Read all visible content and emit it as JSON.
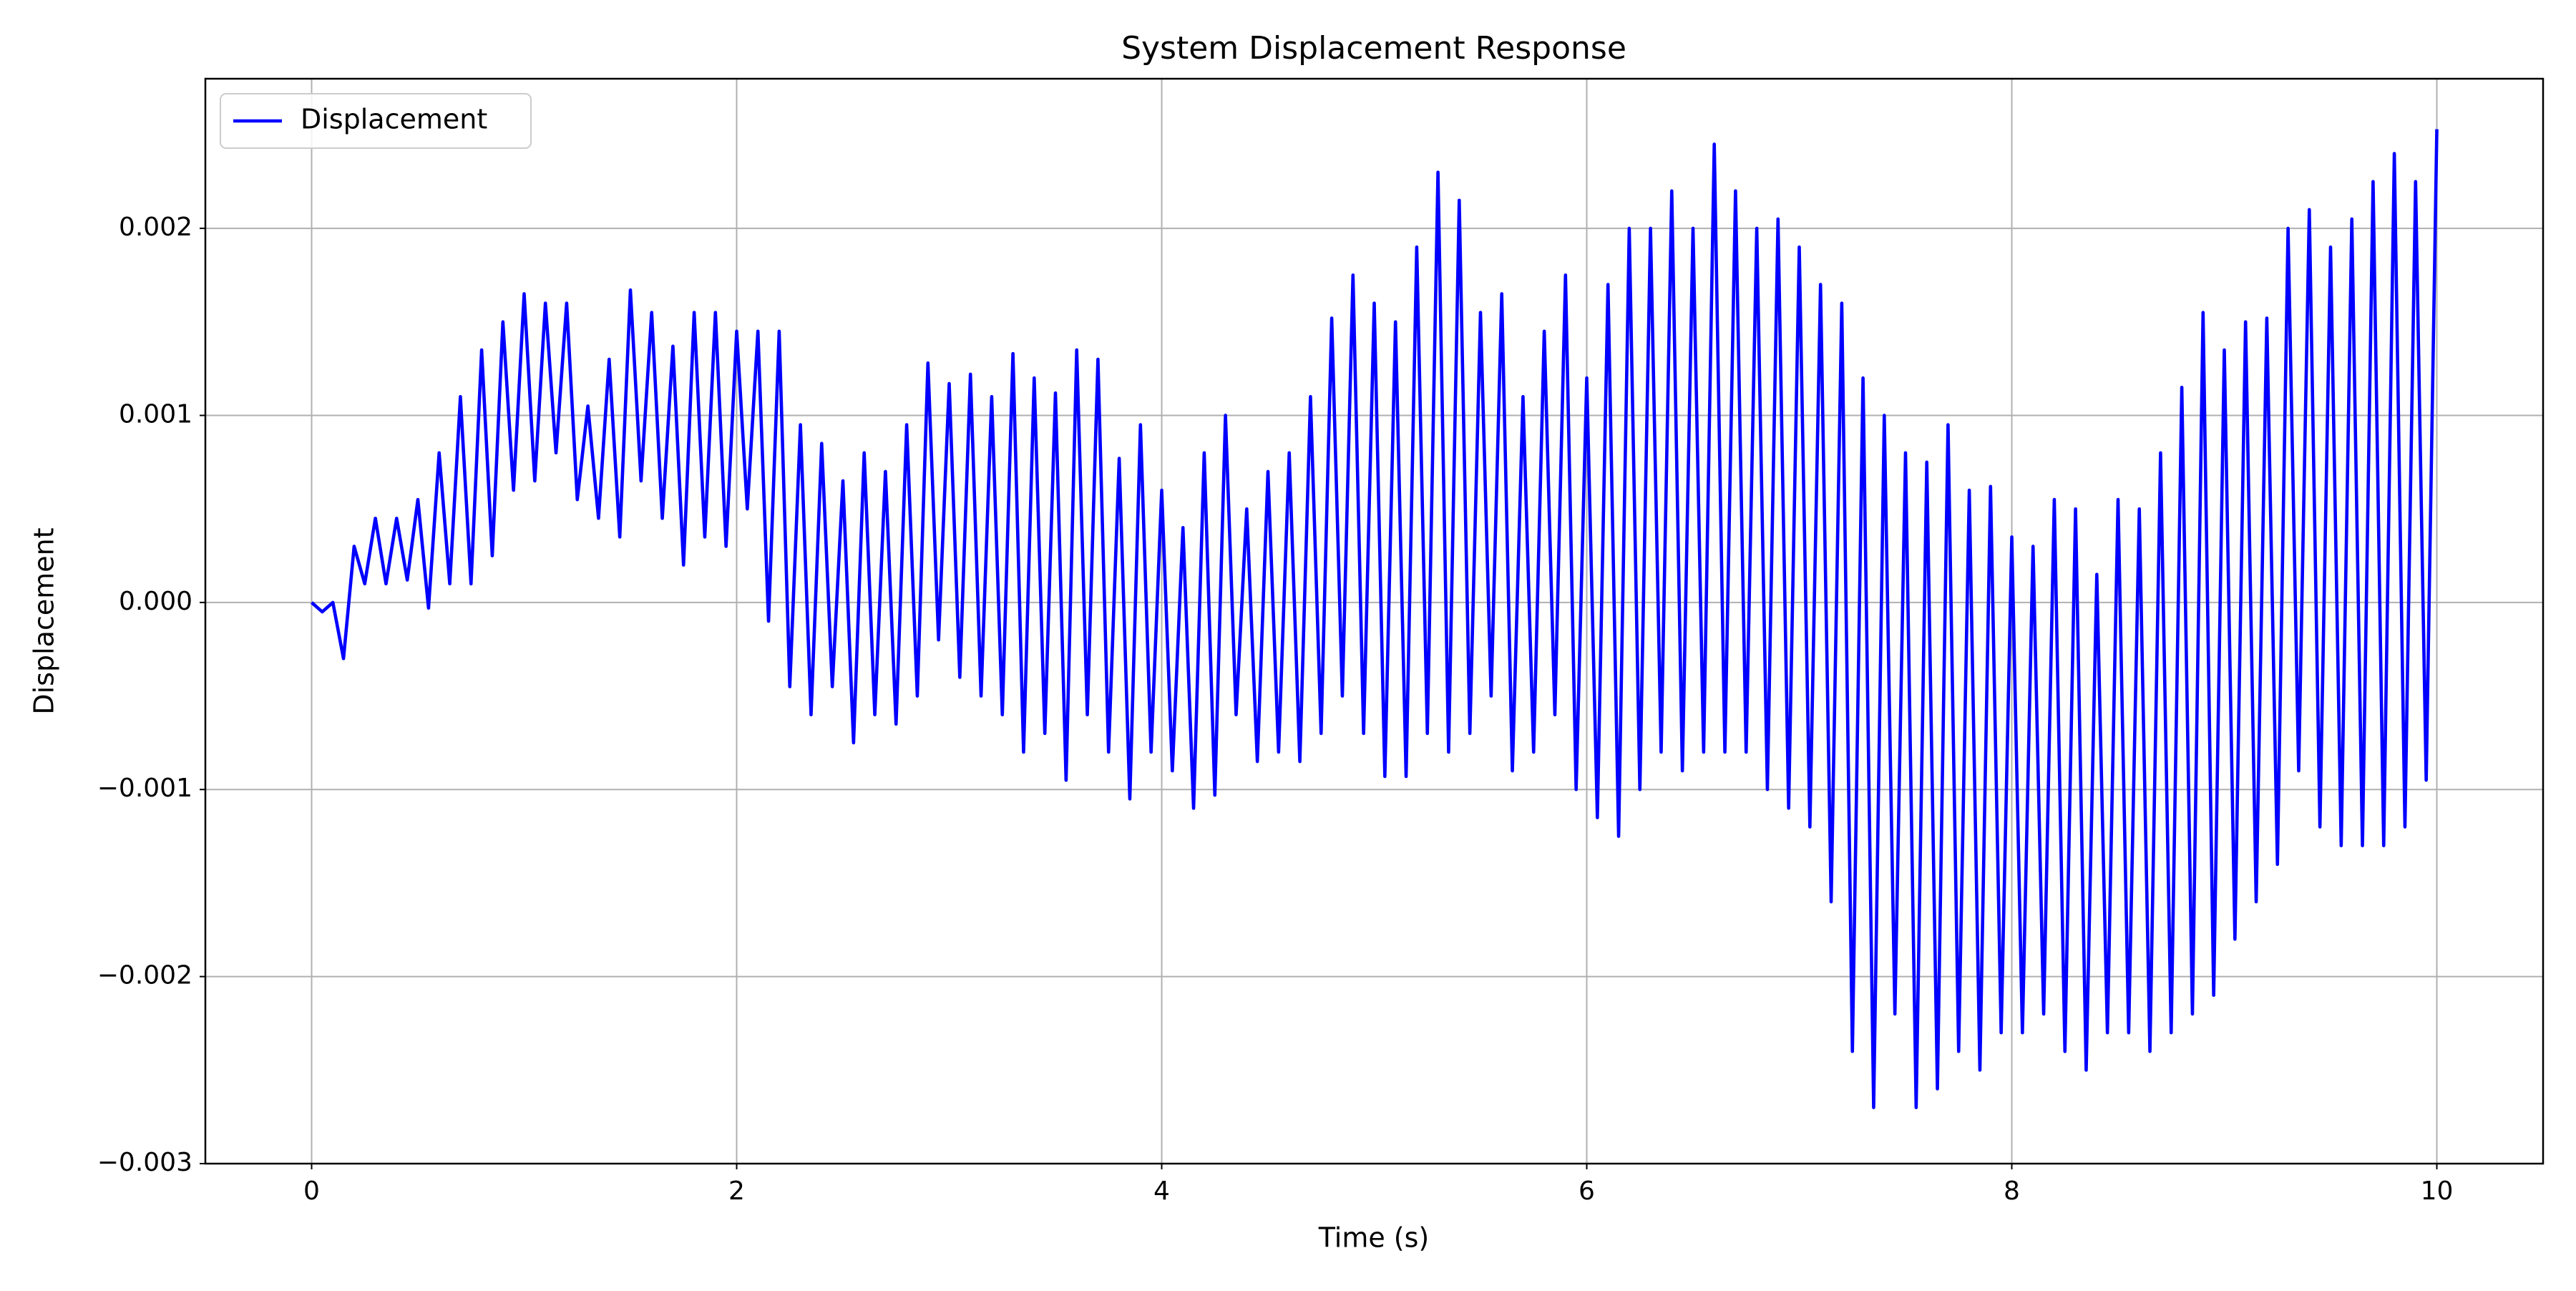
{
  "chart_data": {
    "type": "line",
    "title": "System Displacement Response",
    "x_label": "Time (s)",
    "y_label": "Displacement",
    "x": [
      0,
      0.05,
      0.1,
      0.15,
      0.2,
      0.25,
      0.3,
      0.35,
      0.4,
      0.45,
      0.5,
      0.55,
      0.6,
      0.65,
      0.7,
      0.75,
      0.8,
      0.85,
      0.9,
      0.95,
      1,
      1.05,
      1.1,
      1.15,
      1.2,
      1.25,
      1.3,
      1.35,
      1.4,
      1.45,
      1.5,
      1.55,
      1.6,
      1.65,
      1.7,
      1.75,
      1.8,
      1.85,
      1.9,
      1.95,
      2,
      2.05,
      2.1,
      2.15,
      2.2,
      2.25,
      2.3,
      2.35,
      2.4,
      2.45,
      2.5,
      2.55,
      2.6,
      2.65,
      2.7,
      2.75,
      2.8,
      2.85,
      2.9,
      2.95,
      3,
      3.05,
      3.1,
      3.15,
      3.2,
      3.25,
      3.3,
      3.35,
      3.4,
      3.45,
      3.5,
      3.55,
      3.6,
      3.65,
      3.7,
      3.75,
      3.8,
      3.85,
      3.9,
      3.95,
      4,
      4.05,
      4.1,
      4.15,
      4.2,
      4.25,
      4.3,
      4.35,
      4.4,
      4.45,
      4.5,
      4.55,
      4.6,
      4.65,
      4.7,
      4.75,
      4.8,
      4.85,
      4.9,
      4.95,
      5,
      5.05,
      5.1,
      5.15,
      5.2,
      5.25,
      5.3,
      5.35,
      5.4,
      5.45,
      5.5,
      5.55,
      5.6,
      5.65,
      5.7,
      5.75,
      5.8,
      5.85,
      5.9,
      5.95,
      6,
      6.05,
      6.1,
      6.15,
      6.2,
      6.25,
      6.3,
      6.35,
      6.4,
      6.45,
      6.5,
      6.55,
      6.6,
      6.65,
      6.7,
      6.75,
      6.8,
      6.85,
      6.9,
      6.95,
      7,
      7.05,
      7.1,
      7.15,
      7.2,
      7.25,
      7.3,
      7.35,
      7.4,
      7.45,
      7.5,
      7.55,
      7.6,
      7.65,
      7.7,
      7.75,
      7.8,
      7.85,
      7.9,
      7.95,
      8,
      8.05,
      8.1,
      8.15,
      8.2,
      8.25,
      8.3,
      8.35,
      8.4,
      8.45,
      8.5,
      8.55,
      8.6,
      8.65,
      8.7,
      8.75,
      8.8,
      8.85,
      8.9,
      8.95,
      9,
      9.05,
      9.1,
      9.15,
      9.2,
      9.25,
      9.3,
      9.35,
      9.4,
      9.45,
      9.5,
      9.55,
      9.6,
      9.65,
      9.7,
      9.75,
      9.8,
      9.85,
      9.9,
      9.95,
      10
    ],
    "series": [
      {
        "name": "Displacement",
        "color": "#0000ff",
        "values": [
          0,
          -5e-05,
          0,
          -0.0003,
          0.0003,
          0.0001,
          0.00045,
          0.0001,
          0.00045,
          0.00012,
          0.00055,
          -3e-05,
          0.0008,
          0.0001,
          0.0011,
          0.0001,
          0.00135,
          0.00025,
          0.0015,
          0.0006,
          0.00165,
          0.00065,
          0.0016,
          0.0008,
          0.0016,
          0.00055,
          0.00105,
          0.00045,
          0.0013,
          0.00035,
          0.00167,
          0.00065,
          0.00155,
          0.00045,
          0.00137,
          0.0002,
          0.00155,
          0.00035,
          0.00155,
          0.0003,
          0.00145,
          0.0005,
          0.00145,
          -0.0001,
          0.00145,
          -0.00045,
          0.00095,
          -0.0006,
          0.00085,
          -0.00045,
          0.00065,
          -0.00075,
          0.0008,
          -0.0006,
          0.0007,
          -0.00065,
          0.00095,
          -0.0005,
          0.00128,
          -0.0002,
          0.00117,
          -0.0004,
          0.00122,
          -0.0005,
          0.0011,
          -0.0006,
          0.00133,
          -0.0008,
          0.0012,
          -0.0007,
          0.00112,
          -0.00095,
          0.00135,
          -0.0006,
          0.0013,
          -0.0008,
          0.00077,
          -0.00105,
          0.00095,
          -0.0008,
          0.0006,
          -0.0009,
          0.0004,
          -0.0011,
          0.0008,
          -0.00103,
          0.001,
          -0.0006,
          0.0005,
          -0.00085,
          0.0007,
          -0.0008,
          0.0008,
          -0.00085,
          0.0011,
          -0.0007,
          0.00152,
          -0.0005,
          0.00175,
          -0.0007,
          0.0016,
          -0.00093,
          0.0015,
          -0.00093,
          0.0019,
          -0.0007,
          0.0023,
          -0.0008,
          0.00215,
          -0.0007,
          0.00155,
          -0.0005,
          0.00165,
          -0.0009,
          0.0011,
          -0.0008,
          0.00145,
          -0.0006,
          0.00175,
          -0.001,
          0.0012,
          -0.00115,
          0.0017,
          -0.00125,
          0.002,
          -0.001,
          0.002,
          -0.0008,
          0.0022,
          -0.0009,
          0.002,
          -0.0008,
          0.00245,
          -0.0008,
          0.0022,
          -0.0008,
          0.002,
          -0.001,
          0.00205,
          -0.0011,
          0.0019,
          -0.0012,
          0.0017,
          -0.0016,
          0.0016,
          -0.0024,
          0.0012,
          -0.0027,
          0.001,
          -0.0022,
          0.0008,
          -0.0027,
          0.00075,
          -0.0026,
          0.00095,
          -0.0024,
          0.0006,
          -0.0025,
          0.00062,
          -0.0023,
          0.00035,
          -0.0023,
          0.0003,
          -0.0022,
          0.00055,
          -0.0024,
          0.0005,
          -0.0025,
          0.00015,
          -0.0023,
          0.00055,
          -0.0023,
          0.0005,
          -0.0024,
          0.0008,
          -0.0023,
          0.00115,
          -0.0022,
          0.00155,
          -0.0021,
          0.00135,
          -0.0018,
          0.0015,
          -0.0016,
          0.00152,
          -0.0014,
          0.002,
          -0.0009,
          0.0021,
          -0.0012,
          0.0019,
          -0.0013,
          0.00205,
          -0.0013,
          0.00225,
          -0.0013,
          0.0024,
          -0.0012,
          0.00225,
          -0.00095,
          0.00253
        ]
      }
    ],
    "xlim": [
      -0.5,
      10.5
    ],
    "xticks": [
      0,
      2,
      4,
      6,
      8,
      10
    ],
    "ylim": [
      -0.003,
      0.0028
    ],
    "yticks": [
      {
        "value": -0.003,
        "label": "−0.003"
      },
      {
        "value": -0.002,
        "label": "−0.002"
      },
      {
        "value": -0.001,
        "label": "−0.001"
      },
      {
        "value": 0,
        "label": "0.000"
      },
      {
        "value": 0.001,
        "label": "0.001"
      },
      {
        "value": 0.002,
        "label": "0.002"
      }
    ],
    "grid": true,
    "legend": "upper left"
  }
}
